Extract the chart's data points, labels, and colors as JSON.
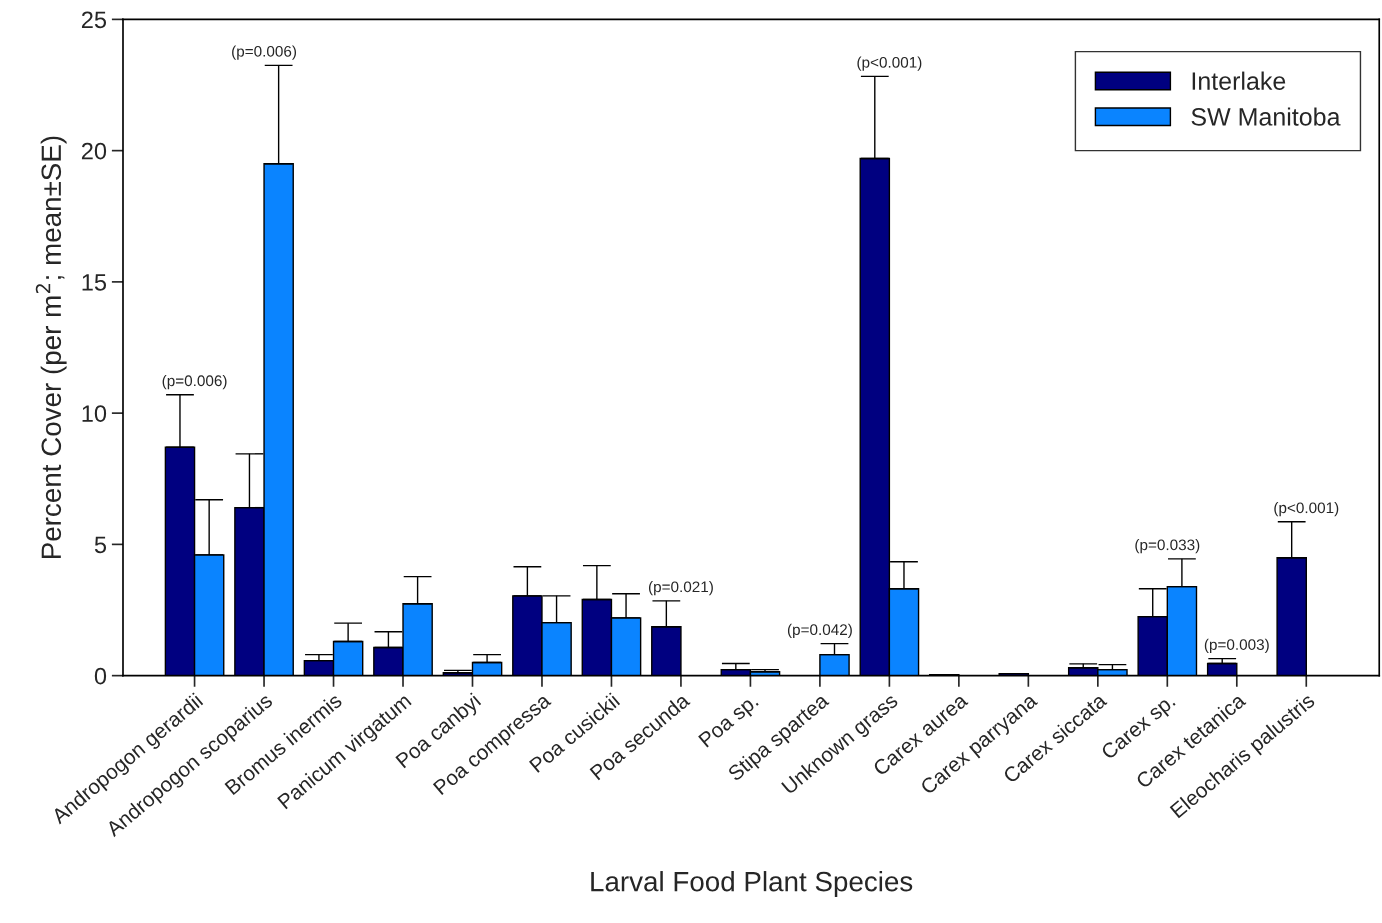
{
  "chart_data": {
    "type": "bar",
    "xlabel": "Larval Food Plant Species",
    "ylabel": "Percent Cover (per m$^{2}$; mean±SE)",
    "categories": [
      "Andropogon gerardii",
      "Andropogon scoparius",
      "Bromus inermis",
      "Panicum virgatum",
      "Poa canbyi",
      "Poa compressa",
      "Poa cusickii",
      "Poa secunda",
      "Poa sp.",
      "Stipa spartea",
      "Unknown grass",
      "Carex aurea",
      "Carex parryana",
      "Carex siccata",
      "Carex sp.",
      "Carex tetanica",
      "Eleocharis palustris"
    ],
    "series": [
      {
        "name": "Interlake",
        "color": "#000080",
        "values": [
          8.7,
          6.4,
          0.57,
          1.07,
          0.11,
          3.04,
          2.9,
          1.86,
          0.23,
          null,
          19.7,
          0.04,
          0.07,
          0.3,
          2.25,
          0.46,
          4.49
        ],
        "errors": [
          [
            8.7,
            10.7
          ],
          [
            6.4,
            8.45
          ],
          [
            0.57,
            0.8
          ],
          [
            1.07,
            1.67
          ],
          [
            0.11,
            0.2
          ],
          [
            3.04,
            4.15
          ],
          [
            2.9,
            4.19
          ],
          [
            1.86,
            2.85
          ],
          [
            0.23,
            0.46
          ],
          null,
          [
            19.7,
            22.83
          ],
          null,
          null,
          [
            0.3,
            0.45
          ],
          [
            2.25,
            3.31
          ],
          [
            0.46,
            0.65
          ],
          [
            4.49,
            5.86
          ]
        ]
      },
      {
        "name": "SW Manitoba",
        "color": "#0a84ff",
        "values": [
          4.6,
          19.5,
          1.3,
          2.74,
          0.5,
          2.02,
          2.2,
          null,
          0.15,
          0.8,
          3.31,
          null,
          null,
          0.23,
          3.39,
          null,
          null
        ],
        "errors": [
          [
            4.6,
            6.7
          ],
          [
            19.5,
            23.25
          ],
          [
            1.3,
            2.0
          ],
          [
            2.74,
            3.77
          ],
          [
            0.5,
            0.8
          ],
          [
            2.02,
            3.04
          ],
          [
            2.2,
            3.12
          ],
          null,
          [
            0.15,
            0.23
          ],
          [
            0.8,
            1.22
          ],
          [
            3.31,
            4.34
          ],
          null,
          null,
          [
            0.23,
            0.42
          ],
          [
            3.39,
            4.45
          ],
          null,
          null
        ]
      }
    ],
    "ylim": [
      0,
      25
    ],
    "yticks": [
      0,
      5,
      10,
      15,
      20,
      25
    ],
    "legend": "top right",
    "grid": false,
    "annotations": [
      {
        "text": "(p=0.006)",
        "x": "Andropogon gerardii",
        "y": 10.7
      },
      {
        "text": "(p=0.006)",
        "x": "Andropogon scoparius",
        "y": 23.25
      },
      {
        "text": "(p=0.021)",
        "x": "Poa secunda",
        "y": 2.85
      },
      {
        "text": "(p=0.042)",
        "x": "Stipa spartea",
        "y": 1.22
      },
      {
        "text": "(p<0.001)",
        "x": "Unknown grass",
        "y": 22.83
      },
      {
        "text": "(p=0.033)",
        "x": "Carex sp.",
        "y": 4.45
      },
      {
        "text": "(p=0.003)",
        "x": "Carex tetanica",
        "y": 0.65
      },
      {
        "text": "(p<0.001)",
        "x": "Eleocharis palustris",
        "y": 5.86
      }
    ]
  }
}
